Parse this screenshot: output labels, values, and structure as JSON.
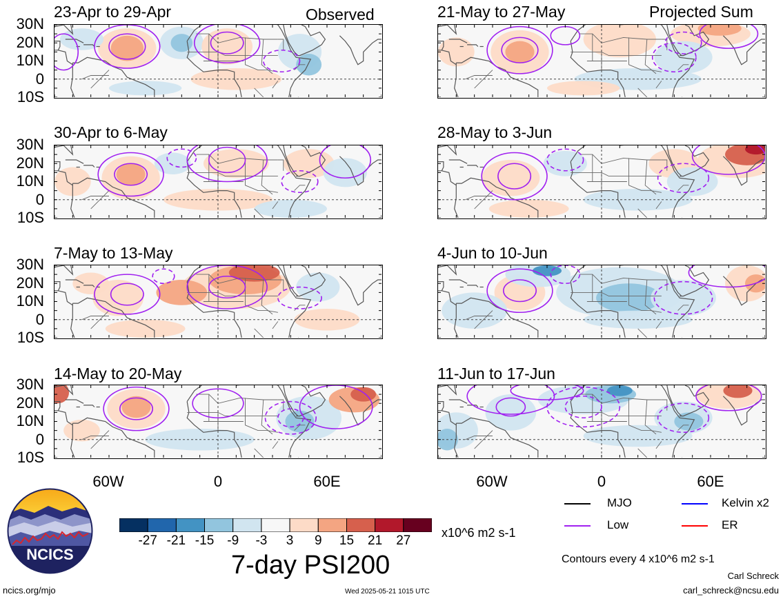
{
  "column_labels": {
    "left": "Observed",
    "right": "Projected Sum"
  },
  "panels": [
    {
      "label": "23-Apr to 29-Apr"
    },
    {
      "label": "30-Apr to 6-May"
    },
    {
      "label": "7-May to 13-May"
    },
    {
      "label": "14-May to 20-May"
    },
    {
      "label": "21-May to 27-May"
    },
    {
      "label": "28-May to 3-Jun"
    },
    {
      "label": "4-Jun to 10-Jun"
    },
    {
      "label": "11-Jun to 17-Jun"
    }
  ],
  "lat_labels": [
    "30N",
    "20N",
    "10N",
    "0",
    "10S"
  ],
  "lon_labels": [
    "60W",
    "0",
    "60E"
  ],
  "colorbar": {
    "tick_labels": [
      "-27",
      "-21",
      "-15",
      "-9",
      "-3",
      "3",
      "9",
      "15",
      "21",
      "27"
    ],
    "colors": [
      "#053061",
      "#2166ac",
      "#4393c3",
      "#92c5de",
      "#d1e5f0",
      "#f7f7f7",
      "#fddbc7",
      "#f4a582",
      "#d6604d",
      "#b2182b",
      "#67001f"
    ],
    "units": "x10^6 m2 s-1",
    "title": "7-day PSI200"
  },
  "legend": {
    "items": [
      {
        "label": "MJO",
        "color": "#000000"
      },
      {
        "label": "Kelvin x2",
        "color": "#0000ff"
      },
      {
        "label": "Low",
        "color": "#a020f0"
      },
      {
        "label": "ER",
        "color": "#ff0000"
      }
    ],
    "contour_note": "Contours every 4 x10^6 m2 s-1"
  },
  "logo": {
    "text": "NCICS"
  },
  "footer": {
    "site": "ncics.org/mjo",
    "timestamp": "Wed 2025-05-21 1015 UTC",
    "author": "Carl Schreck",
    "email": "carl_schreck@ncsu.edu"
  }
}
